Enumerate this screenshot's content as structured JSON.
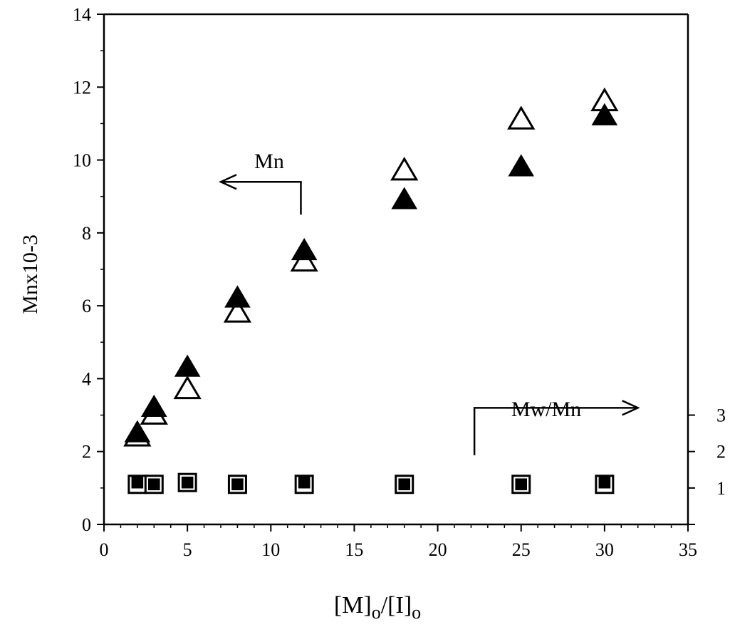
{
  "chart_data": {
    "type": "scatter",
    "xlabel": {
      "pre": "[M]",
      "sub1": "o",
      "mid": "/[I]",
      "sub2": "o"
    },
    "ylabel": "Mnx10-3",
    "xlim": [
      0,
      35
    ],
    "ylim": [
      0,
      14
    ],
    "y2lim": [
      0,
      14
    ],
    "x_ticks": [
      "0",
      "5",
      "10",
      "15",
      "20",
      "25",
      "30",
      "35"
    ],
    "x_tick_values": [
      0,
      5,
      10,
      15,
      20,
      25,
      30,
      35
    ],
    "y_ticks": [
      "0",
      "2",
      "4",
      "6",
      "8",
      "10",
      "12",
      "14"
    ],
    "y_tick_values": [
      0,
      2,
      4,
      6,
      8,
      10,
      12,
      14
    ],
    "y2_ticks": [
      "1",
      "2",
      "3"
    ],
    "y2_tick_values": [
      1,
      2,
      3
    ],
    "grid": false,
    "annotations": [
      {
        "text": "Mn",
        "arrow": "left",
        "axis": "left"
      },
      {
        "text": "Mw/Mn",
        "arrow": "right",
        "axis": "right"
      }
    ],
    "series": [
      {
        "marker": "open-triangle",
        "axis": "left",
        "points": [
          [
            2,
            2.4
          ],
          [
            3,
            3.0
          ],
          [
            5,
            3.7
          ],
          [
            8,
            5.8
          ],
          [
            12,
            7.2
          ],
          [
            18,
            9.7
          ],
          [
            25,
            11.1
          ],
          [
            30,
            11.6
          ]
        ]
      },
      {
        "marker": "filled-triangle",
        "axis": "left",
        "points": [
          [
            2,
            2.5
          ],
          [
            3,
            3.2
          ],
          [
            5,
            4.3
          ],
          [
            8,
            6.2
          ],
          [
            12,
            7.5
          ],
          [
            18,
            8.9
          ],
          [
            25,
            9.8
          ],
          [
            30,
            11.2
          ]
        ]
      },
      {
        "marker": "open-square",
        "axis": "right",
        "points": [
          [
            2,
            1.1
          ],
          [
            3,
            1.1
          ],
          [
            5,
            1.15
          ],
          [
            8,
            1.1
          ],
          [
            12,
            1.1
          ],
          [
            18,
            1.1
          ],
          [
            25,
            1.1
          ],
          [
            30,
            1.1
          ]
        ]
      },
      {
        "marker": "filled-square",
        "axis": "right",
        "points": [
          [
            2,
            1.15
          ],
          [
            3,
            1.1
          ],
          [
            5,
            1.15
          ],
          [
            8,
            1.1
          ],
          [
            12,
            1.15
          ],
          [
            18,
            1.1
          ],
          [
            25,
            1.1
          ],
          [
            30,
            1.15
          ]
        ]
      }
    ]
  }
}
